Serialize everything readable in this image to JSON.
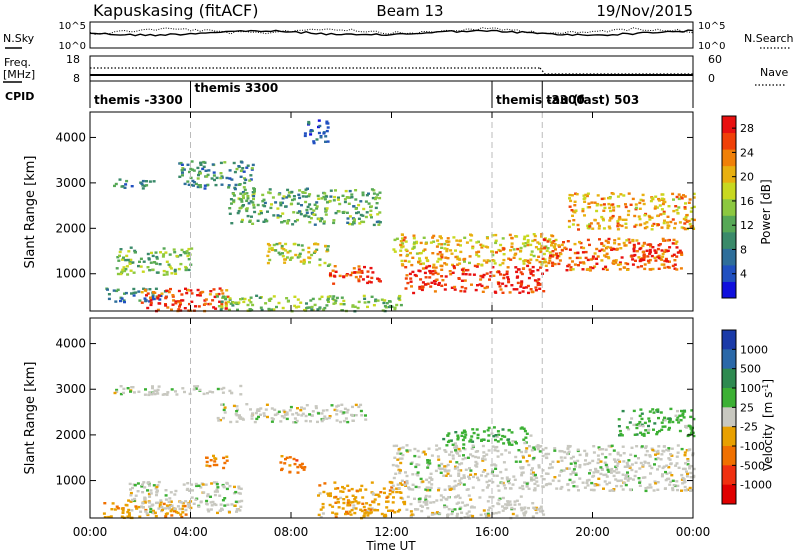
{
  "header": {
    "site": "Kapuskasing (fitACF)",
    "beam": "Beam 13",
    "date": "19/Nov/2015"
  },
  "top_panels": {
    "nsky_label": "N.Sky",
    "nsky_ticks": [
      "10^5",
      "10^0"
    ],
    "nsearch_label": "N.Search",
    "nsearch_ticks": [
      "10^5",
      "10^0"
    ],
    "freq_label": "Freq.",
    "freq_unit": "[MHz]",
    "freq_ticks": [
      "18",
      "8"
    ],
    "nave_label": "Nave",
    "nave_ticks": [
      "60",
      "0"
    ],
    "cpid_label": "CPID",
    "cpid_segments": [
      {
        "label": "themis -3300",
        "start_h": 0.0,
        "end_h": 4.0
      },
      {
        "label": "themis 3300",
        "start_h": 4.0,
        "end_h": 16.0
      },
      {
        "label": "themis -3300",
        "start_h": 16.0,
        "end_h": 18.0
      },
      {
        "label": "tau (fast) 503",
        "start_h": 18.0,
        "end_h": 24.0
      }
    ]
  },
  "chart_data": [
    {
      "type": "heatmap",
      "title": "",
      "xlabel": "Time UT",
      "ylabel": "Slant Range [km]",
      "x_ticks": [
        "00:00",
        "04:00",
        "08:00",
        "12:00",
        "16:00",
        "20:00",
        "00:00"
      ],
      "xlim_h": [
        0,
        24
      ],
      "y_ticks": [
        1000,
        2000,
        3000,
        4000
      ],
      "ylim": [
        180,
        4560
      ],
      "colorbar": {
        "label": "Power [dB]",
        "ticks": [
          4,
          8,
          12,
          16,
          20,
          24,
          28
        ],
        "range": [
          0,
          30
        ],
        "colors": [
          "#1010dd",
          "#2050c0",
          "#2e6e9a",
          "#3a8a6a",
          "#56a856",
          "#8cc840",
          "#c8d820",
          "#e8b010",
          "#f08008",
          "#f04008",
          "#e81010"
        ]
      },
      "regions": [
        {
          "t0": 0.5,
          "t1": 3.0,
          "r0": 400,
          "r1": 700,
          "v": 8
        },
        {
          "t0": 2.0,
          "t1": 5.5,
          "r0": 200,
          "r1": 700,
          "v": 26
        },
        {
          "t0": 5.0,
          "t1": 12.5,
          "r0": 200,
          "r1": 550,
          "v": 14
        },
        {
          "t0": 1.0,
          "t1": 4.0,
          "r0": 1000,
          "r1": 1600,
          "v": 14
        },
        {
          "t0": 0.8,
          "t1": 2.5,
          "r0": 2900,
          "r1": 3100,
          "v": 8
        },
        {
          "t0": 3.5,
          "t1": 6.5,
          "r0": 2900,
          "r1": 3500,
          "v": 10
        },
        {
          "t0": 5.5,
          "t1": 11.5,
          "r0": 2100,
          "r1": 2900,
          "v": 12
        },
        {
          "t0": 7.0,
          "t1": 9.5,
          "r0": 1200,
          "r1": 1700,
          "v": 16
        },
        {
          "t0": 9.5,
          "t1": 11.5,
          "r0": 800,
          "r1": 1200,
          "v": 27
        },
        {
          "t0": 12.0,
          "t1": 18.5,
          "r0": 1200,
          "r1": 1900,
          "v": 20
        },
        {
          "t0": 12.5,
          "t1": 18.0,
          "r0": 600,
          "r1": 1200,
          "v": 28
        },
        {
          "t0": 18.0,
          "t1": 23.5,
          "r0": 1100,
          "r1": 1800,
          "v": 24
        },
        {
          "t0": 19.0,
          "t1": 24.0,
          "r0": 2000,
          "r1": 2800,
          "v": 21
        },
        {
          "t0": 21.5,
          "t1": 23.5,
          "r0": 1300,
          "r1": 1700,
          "v": 28
        },
        {
          "t0": 8.5,
          "t1": 9.5,
          "r0": 3900,
          "r1": 4400,
          "v": 6
        }
      ]
    },
    {
      "type": "heatmap",
      "title": "",
      "xlabel": "Time UT",
      "ylabel": "Slant Range [km]",
      "x_ticks": [
        "00:00",
        "04:00",
        "08:00",
        "12:00",
        "16:00",
        "20:00",
        "00:00"
      ],
      "xlim_h": [
        0,
        24
      ],
      "y_ticks": [
        1000,
        2000,
        3000,
        4000
      ],
      "ylim": [
        180,
        4560
      ],
      "colorbar": {
        "label": "Velocity",
        "unit": "[m s",
        "unit_exp": "-1",
        "ticks": [
          "1000",
          "500",
          "100",
          "25",
          "-25",
          "-100",
          "-500",
          "-1000"
        ],
        "colors": [
          "#1a3aa8",
          "#2a68a8",
          "#2e8a50",
          "#3cb034",
          "#c8c8c0",
          "#e8a000",
          "#f07000",
          "#f03010",
          "#e00000"
        ]
      },
      "regions": [
        {
          "t0": 0.5,
          "t1": 4.0,
          "r0": 200,
          "r1": 600,
          "c": 5
        },
        {
          "t0": 1.5,
          "t1": 6.0,
          "r0": 300,
          "r1": 1000,
          "c": 4
        },
        {
          "t0": 0.8,
          "t1": 6.0,
          "r0": 2900,
          "r1": 3100,
          "c": 4
        },
        {
          "t0": 5.0,
          "t1": 11.0,
          "r0": 2300,
          "r1": 2700,
          "c": 4
        },
        {
          "t0": 9.0,
          "t1": 12.5,
          "r0": 200,
          "r1": 1000,
          "c": 5
        },
        {
          "t0": 12.0,
          "t1": 24.0,
          "r0": 800,
          "r1": 1800,
          "c": 4
        },
        {
          "t0": 12.5,
          "t1": 18.0,
          "r0": 200,
          "r1": 700,
          "c": 4
        },
        {
          "t0": 4.5,
          "t1": 5.5,
          "r0": 1300,
          "r1": 1600,
          "c": 6
        },
        {
          "t0": 7.5,
          "t1": 8.5,
          "r0": 1200,
          "r1": 1600,
          "c": 6
        },
        {
          "t0": 21.0,
          "t1": 24.0,
          "r0": 2000,
          "r1": 2600,
          "c": 3
        },
        {
          "t0": 14.0,
          "t1": 17.5,
          "r0": 1800,
          "r1": 2200,
          "c": 3
        }
      ]
    }
  ]
}
